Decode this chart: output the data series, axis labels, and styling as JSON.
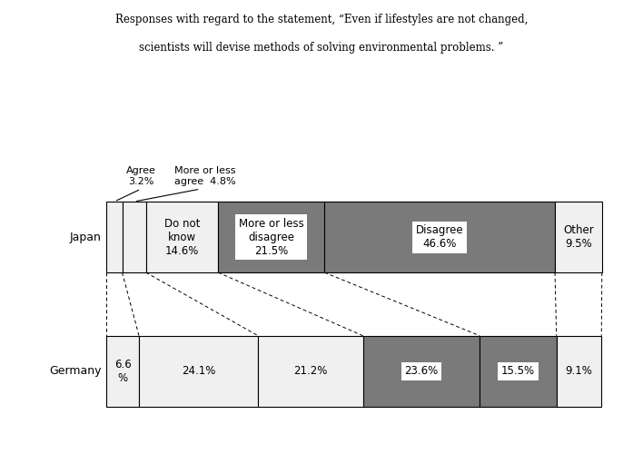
{
  "title_line1": "Responses with regard to the statement, “Even if lifestyles are not changed,",
  "title_line2": "scientists will devise methods of solving environmental problems. ”",
  "japan": {
    "label": "Japan",
    "segments": [
      {
        "label": "Agree\n3.2%",
        "value": 3.2,
        "color": "#f0f0f0",
        "annotate_outside": true
      },
      {
        "label": "More or less\nagree  4.8%",
        "value": 4.8,
        "color": "#f0f0f0",
        "annotate_outside": true
      },
      {
        "label": "Do not\nknow\n14.6%",
        "value": 14.6,
        "color": "#f0f0f0",
        "annotate_outside": false
      },
      {
        "label": "More or less\ndisagree\n21.5%",
        "value": 21.5,
        "color": "#7a7a7a",
        "annotate_outside": false
      },
      {
        "label": "Disagree\n46.6%",
        "value": 46.6,
        "color": "#7a7a7a",
        "annotate_outside": false
      },
      {
        "label": "Other\n9.5%",
        "value": 9.5,
        "color": "#f0f0f0",
        "annotate_outside": false
      }
    ]
  },
  "germany": {
    "label": "Germany",
    "segments": [
      {
        "label": "6.6\n%",
        "value": 6.6,
        "color": "#f0f0f0"
      },
      {
        "label": "24.1%",
        "value": 24.1,
        "color": "#f0f0f0"
      },
      {
        "label": "21.2%",
        "value": 21.2,
        "color": "#f0f0f0"
      },
      {
        "label": "23.6%",
        "value": 23.6,
        "color": "#7a7a7a"
      },
      {
        "label": "15.5%",
        "value": 15.5,
        "color": "#7a7a7a"
      },
      {
        "label": "9.1%",
        "value": 9.1,
        "color": "#f0f0f0"
      }
    ]
  }
}
